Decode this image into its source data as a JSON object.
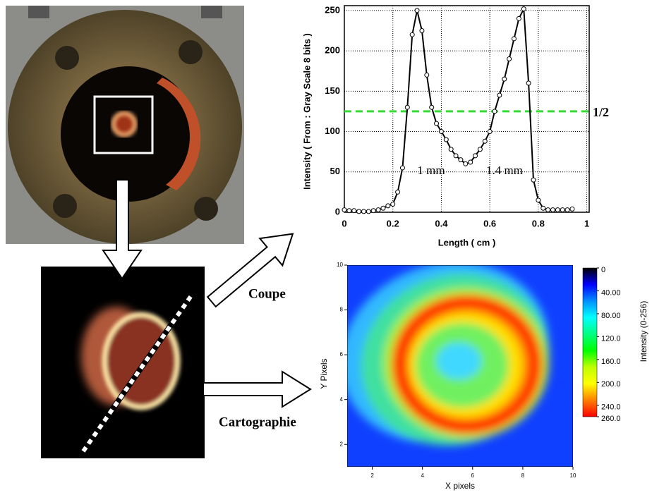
{
  "chart_data": [
    {
      "type": "line",
      "x_label": "Length ( cm  )",
      "y_label": "Intensity ( From : Gray Scale 8 bits )",
      "x": [
        0,
        0.02,
        0.04,
        0.06,
        0.08,
        0.1,
        0.12,
        0.14,
        0.16,
        0.18,
        0.2,
        0.22,
        0.24,
        0.26,
        0.28,
        0.3,
        0.32,
        0.34,
        0.36,
        0.38,
        0.4,
        0.42,
        0.44,
        0.46,
        0.48,
        0.5,
        0.52,
        0.54,
        0.56,
        0.58,
        0.6,
        0.62,
        0.64,
        0.66,
        0.68,
        0.7,
        0.72,
        0.74,
        0.76,
        0.78,
        0.8,
        0.82,
        0.84,
        0.86,
        0.88,
        0.9,
        0.92,
        0.94
      ],
      "values": [
        3,
        2,
        2,
        1,
        1,
        1,
        2,
        3,
        5,
        8,
        10,
        25,
        55,
        130,
        220,
        250,
        225,
        170,
        130,
        110,
        100,
        90,
        78,
        70,
        65,
        60,
        62,
        70,
        78,
        88,
        100,
        125,
        145,
        165,
        190,
        215,
        240,
        252,
        160,
        40,
        15,
        5,
        3,
        3,
        3,
        3,
        3,
        4
      ],
      "color": "#000000",
      "xlim": [
        0,
        1.01
      ],
      "ylim": [
        0,
        256
      ],
      "xticks": [
        0,
        0.2,
        0.4,
        0.6,
        0.8,
        1
      ],
      "yticks": [
        0,
        50,
        100,
        150,
        200,
        250
      ],
      "grid": true,
      "hline": {
        "value": 125,
        "label": "1/2",
        "color": "#33dd33"
      },
      "annotations": [
        "1 mm",
        "1.4 mm"
      ]
    },
    {
      "type": "heatmap",
      "x_label": "X pixels",
      "y_label": "Y Pixels",
      "xlim": [
        1,
        10
      ],
      "ylim": [
        1,
        10
      ],
      "xticks": [
        2,
        4,
        6,
        8,
        10
      ],
      "yticks": [
        2,
        4,
        6,
        8,
        10
      ],
      "colorbar": {
        "label": "Intensity (0-256)",
        "lim": [
          0,
          260
        ],
        "ticks": [
          0,
          {
            "value": 40,
            "label": "40.00"
          },
          {
            "value": 80,
            "label": "80.00"
          },
          {
            "value": 120,
            "label": "120.0"
          },
          {
            "value": 160,
            "label": "160.0"
          },
          {
            "value": 200,
            "label": "200.0"
          },
          {
            "value": 240,
            "label": "240.0"
          },
          {
            "value": 260,
            "label": "260.0"
          }
        ],
        "colors": [
          "#000000",
          "#0000ff",
          "#0090ff",
          "#00ffff",
          "#00ff80",
          "#00ff00",
          "#c0ff00",
          "#ffff00",
          "#ff8000",
          "#ff0000"
        ]
      }
    }
  ],
  "annotations": [
    "Coupe",
    "Cartographie"
  ]
}
